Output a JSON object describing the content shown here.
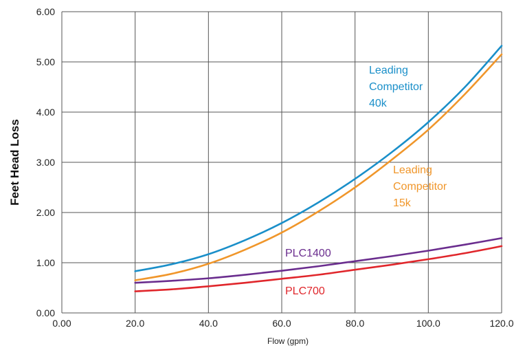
{
  "chart_data": {
    "type": "line",
    "title": "",
    "xlabel": "Flow (gpm)",
    "ylabel": "Feet Head Loss",
    "xlim": [
      0,
      120
    ],
    "ylim": [
      0,
      6
    ],
    "grid": true,
    "x_ticks": [
      0,
      20,
      40,
      60,
      80,
      100,
      120
    ],
    "x_tick_labels": [
      "0.00",
      "20.0",
      "40.0",
      "60.0",
      "80.0",
      "100.0",
      "120.0"
    ],
    "y_ticks": [
      0,
      1,
      2,
      3,
      4,
      5,
      6
    ],
    "y_tick_labels": [
      "0.00",
      "1.00",
      "2.00",
      "3.00",
      "4.00",
      "5.00",
      "6.00"
    ],
    "series": [
      {
        "name": "Leading Competitor 40k",
        "label_lines": [
          "Leading",
          "Competitor",
          "40k"
        ],
        "color": "#1a8fc9",
        "x": [
          20,
          30,
          40,
          50,
          60,
          70,
          80,
          90,
          100,
          110,
          120
        ],
        "y": [
          0.83,
          0.97,
          1.17,
          1.45,
          1.79,
          2.2,
          2.67,
          3.2,
          3.8,
          4.5,
          5.32
        ]
      },
      {
        "name": "Leading Competitor 15k",
        "label_lines": [
          "Leading",
          "Competitor",
          "15k"
        ],
        "color": "#f0962a",
        "x": [
          20,
          30,
          40,
          50,
          60,
          70,
          80,
          90,
          100,
          110,
          120
        ],
        "y": [
          0.65,
          0.78,
          0.98,
          1.26,
          1.6,
          2.02,
          2.5,
          3.05,
          3.65,
          4.36,
          5.15
        ]
      },
      {
        "name": "PLC1400",
        "label_lines": [
          "PLC1400"
        ],
        "color": "#6a2d8e",
        "x": [
          20,
          30,
          40,
          50,
          60,
          70,
          80,
          90,
          100,
          110,
          120
        ],
        "y": [
          0.6,
          0.64,
          0.69,
          0.76,
          0.84,
          0.93,
          1.03,
          1.13,
          1.24,
          1.36,
          1.49
        ]
      },
      {
        "name": "PLC700",
        "label_lines": [
          "PLC700"
        ],
        "color": "#e0262b",
        "x": [
          20,
          30,
          40,
          50,
          60,
          70,
          80,
          90,
          100,
          110,
          120
        ],
        "y": [
          0.43,
          0.47,
          0.53,
          0.6,
          0.68,
          0.76,
          0.86,
          0.96,
          1.07,
          1.19,
          1.33
        ]
      }
    ]
  }
}
